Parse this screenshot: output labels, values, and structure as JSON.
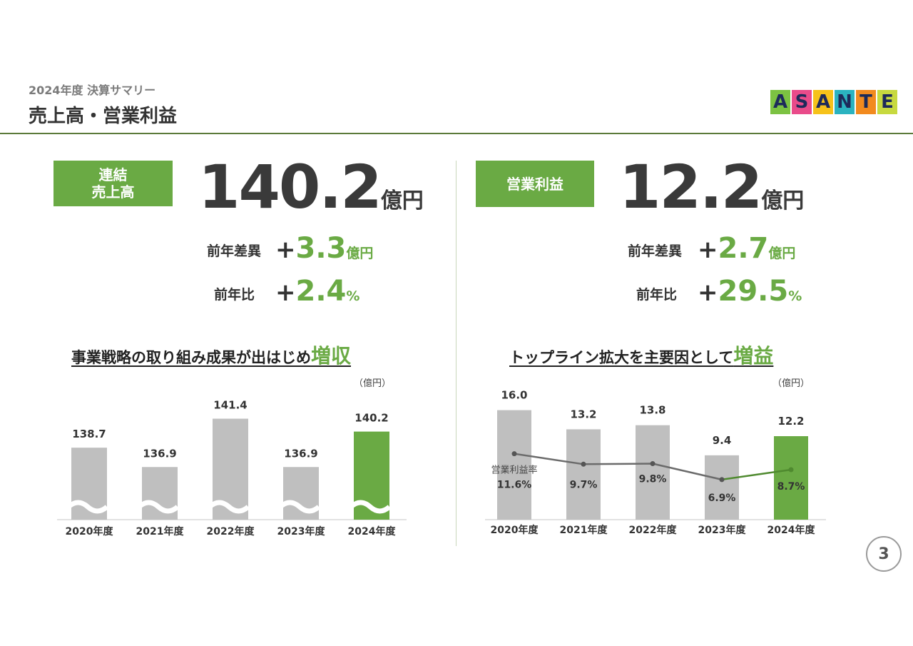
{
  "header": {
    "subtitle": "2024年度 決算サマリー",
    "title": "売上高・営業利益"
  },
  "logo": {
    "letters": [
      "A",
      "S",
      "A",
      "N",
      "T",
      "E"
    ],
    "colors": [
      "#7cc242",
      "#e94b8a",
      "#f6c21a",
      "#2bb3c0",
      "#f28a1e",
      "#c7d93f"
    ]
  },
  "sales": {
    "label": "連結\n売上高",
    "value": "140.2",
    "unit": "億円",
    "diff_label": "前年差異",
    "diff_sign": "+",
    "diff_value": "3.3",
    "diff_unit": "億円",
    "ratio_label": "前年比",
    "ratio_sign": "+",
    "ratio_value": "2.4",
    "ratio_unit": "%"
  },
  "profit": {
    "label": "営業利益",
    "value": "12.2",
    "unit": "億円",
    "diff_label": "前年差異",
    "diff_sign": "+",
    "diff_value": "2.7",
    "diff_unit": "億円",
    "ratio_label": "前年比",
    "ratio_sign": "+",
    "ratio_value": "29.5",
    "ratio_unit": "%"
  },
  "sales_chart": {
    "title_main": "事業戦略の取り組み成果が出はじめ",
    "title_accent": "増収",
    "unit_note": "（億円）"
  },
  "profit_chart": {
    "title_main": "トップライン拡大を主要因として",
    "title_accent": "増益",
    "unit_note": "（億円）"
  },
  "colors": {
    "accent": "#6aaa44",
    "bar_gray": "#bfbfbf",
    "line_gray": "#6b6b6b",
    "line_green": "#4f8a2f"
  },
  "page_number": "3",
  "chart_data": [
    {
      "type": "bar",
      "categories": [
        "2020年度",
        "2021年度",
        "2022年度",
        "2023年度",
        "2024年度"
      ],
      "values": [
        138.7,
        136.9,
        141.4,
        136.9,
        140.2
      ],
      "labels": [
        "138.7",
        "136.9",
        "141.4",
        "136.9",
        "140.2"
      ],
      "highlight_index": 4,
      "axis_break": true,
      "title": "",
      "xlabel": "",
      "ylabel": "",
      "ylim": [
        132,
        142.5
      ]
    },
    {
      "type": "bar",
      "categories": [
        "2020年度",
        "2021年度",
        "2022年度",
        "2023年度",
        "2024年度"
      ],
      "values": [
        16.0,
        13.2,
        13.8,
        9.4,
        12.2
      ],
      "labels": [
        "16.0",
        "13.2",
        "13.8",
        "9.4",
        "12.2"
      ],
      "highlight_index": 4,
      "ylim": [
        0,
        17
      ],
      "line_series": {
        "name": "営業利益率",
        "values": [
          11.6,
          9.7,
          9.8,
          6.9,
          8.7
        ],
        "labels": [
          "11.6%",
          "9.7%",
          "9.8%",
          "6.9%",
          "8.7%"
        ]
      }
    }
  ]
}
